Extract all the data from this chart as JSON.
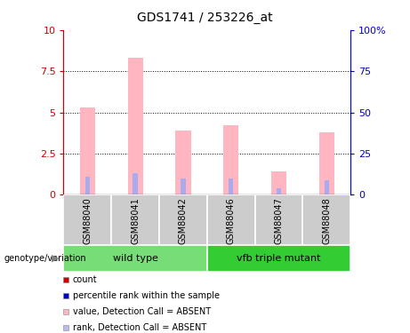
{
  "title": "GDS1741 / 253226_at",
  "samples": [
    "GSM88040",
    "GSM88041",
    "GSM88042",
    "GSM88046",
    "GSM88047",
    "GSM88048"
  ],
  "groups": [
    {
      "label": "wild type",
      "color": "#66DD66",
      "start": 0,
      "end": 3
    },
    {
      "label": "vfb triple mutant",
      "color": "#33CC33",
      "start": 3,
      "end": 6
    }
  ],
  "pink_bars": [
    5.3,
    8.3,
    3.9,
    4.2,
    1.4,
    3.8
  ],
  "blue_bars": [
    1.1,
    1.3,
    1.0,
    1.0,
    0.4,
    0.9
  ],
  "ylim_left": [
    0,
    10
  ],
  "ylim_right": [
    0,
    100
  ],
  "yticks_left": [
    0,
    2.5,
    5.0,
    7.5,
    10
  ],
  "yticks_right": [
    0,
    25,
    50,
    75,
    100
  ],
  "ytick_labels_left": [
    "0",
    "2.5",
    "5",
    "7.5",
    "10"
  ],
  "ytick_labels_right": [
    "0",
    "25",
    "50",
    "75",
    "100%"
  ],
  "grid_values": [
    2.5,
    5.0,
    7.5
  ],
  "pink_color": "#FFB6C1",
  "blue_color": "#AAAAEE",
  "red_color": "#CC0000",
  "left_axis_color": "#CC0000",
  "right_axis_color": "#0000CC",
  "label_bg_color": "#CCCCCC",
  "group1_color": "#77DD77",
  "group2_color": "#33CC33",
  "legend_items": [
    {
      "label": "count",
      "color": "#CC0000"
    },
    {
      "label": "percentile rank within the sample",
      "color": "#0000CC"
    },
    {
      "label": "value, Detection Call = ABSENT",
      "color": "#FFB6C1"
    },
    {
      "label": "rank, Detection Call = ABSENT",
      "color": "#BBBBEE"
    }
  ]
}
